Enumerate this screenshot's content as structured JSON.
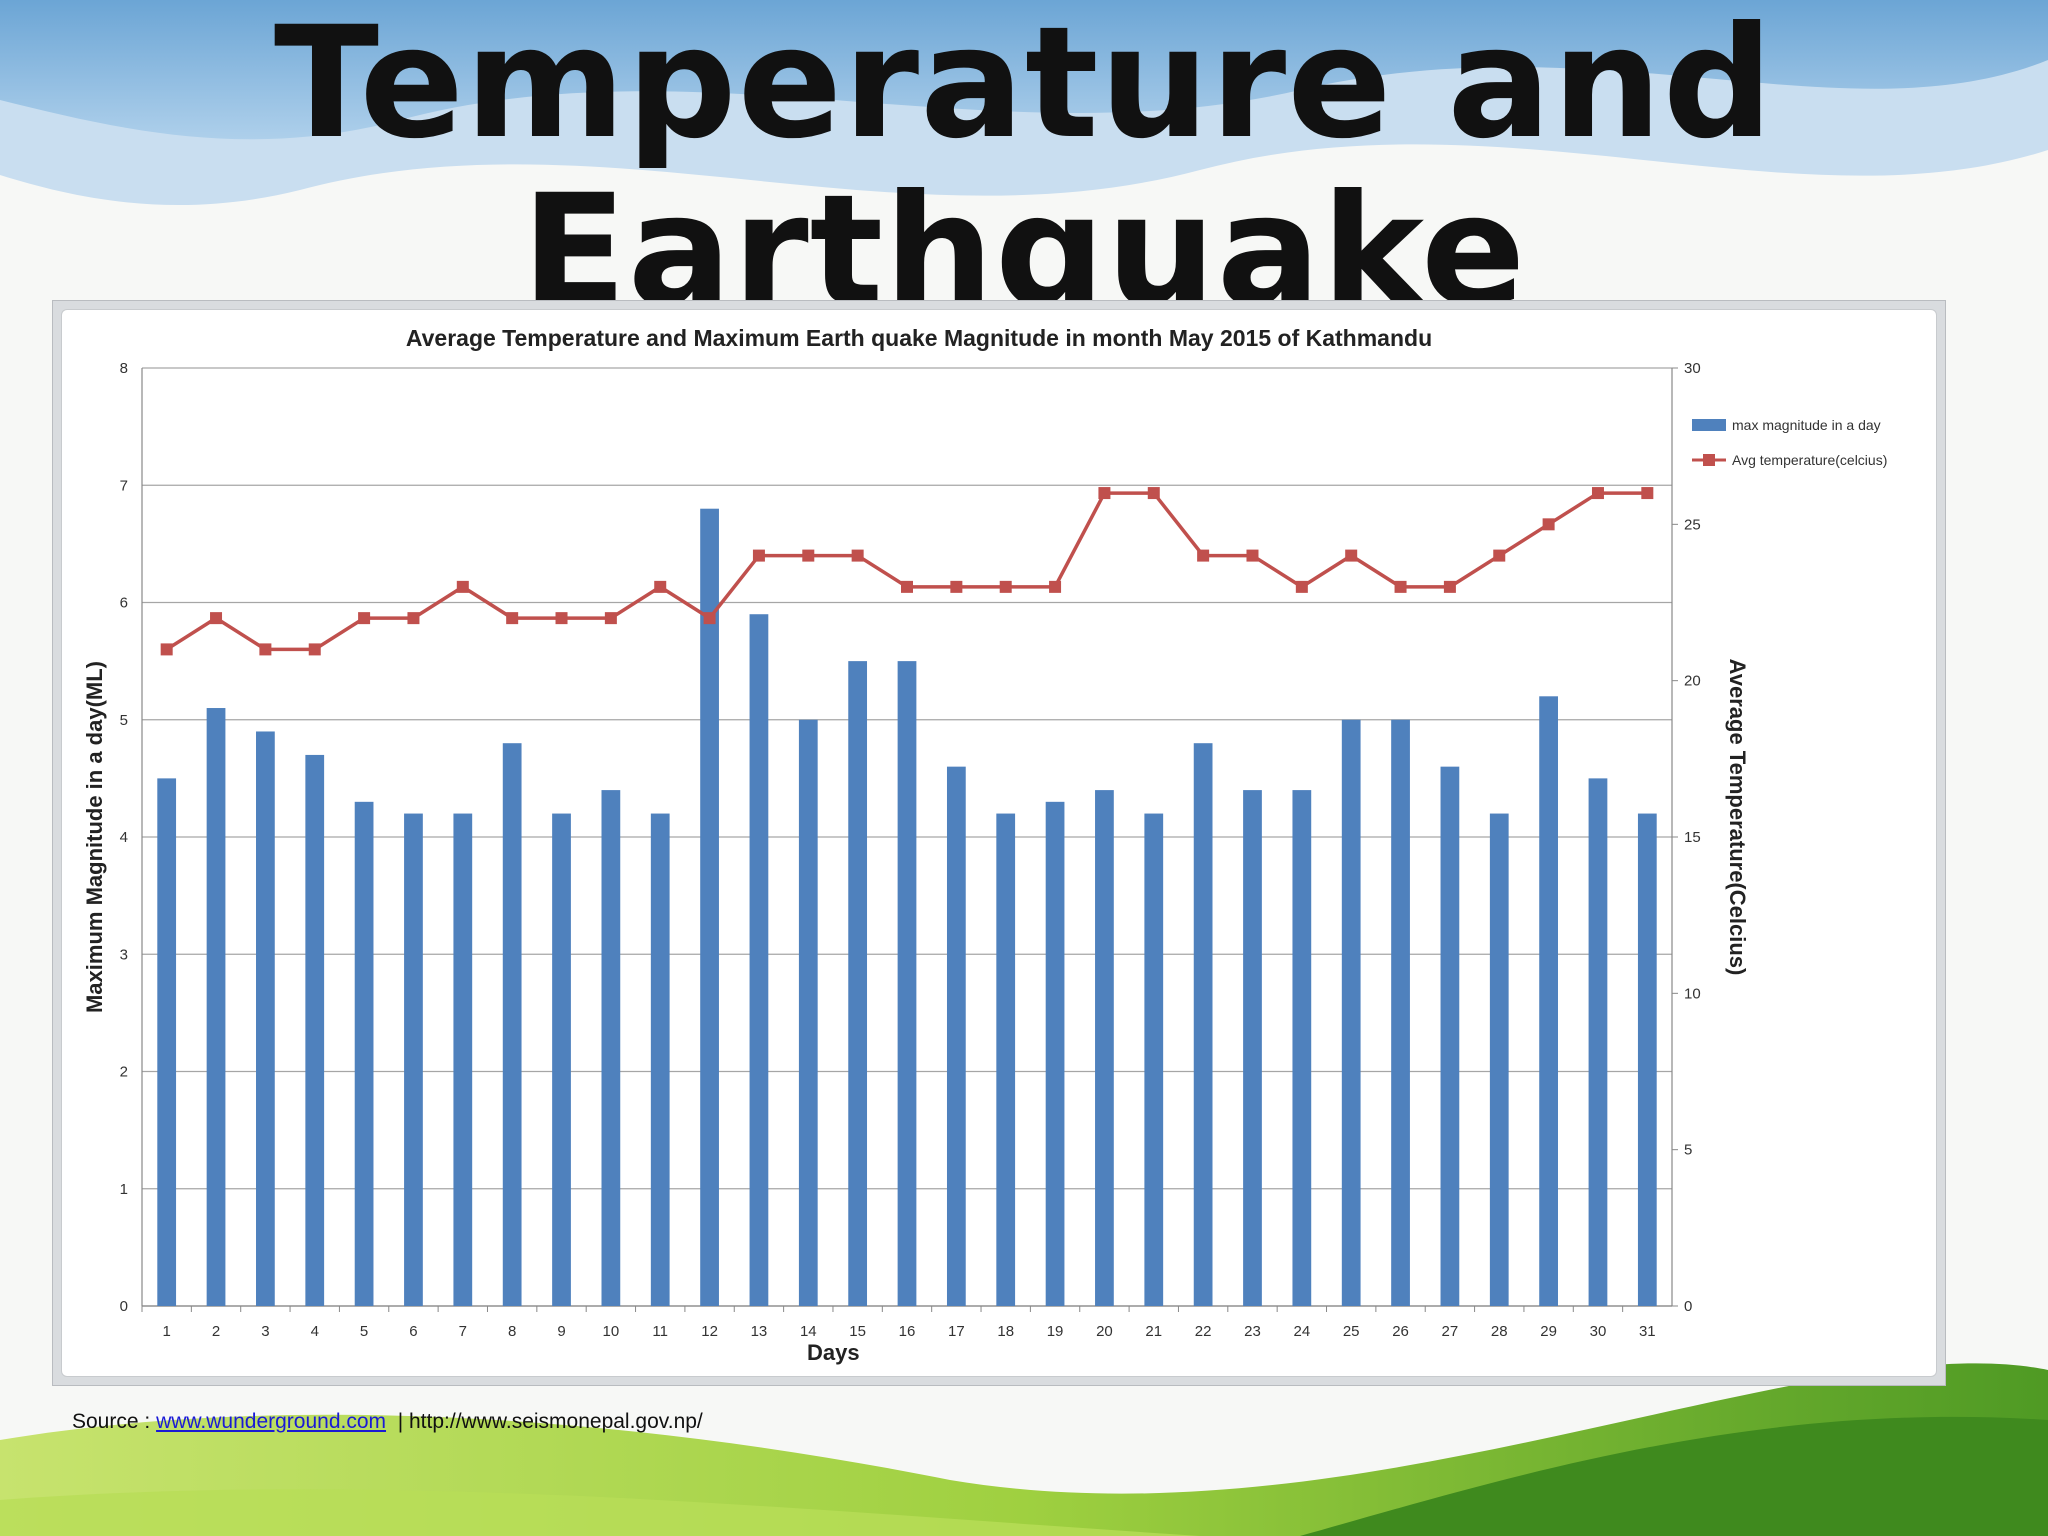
{
  "slide": {
    "title_line1": "Temperature and",
    "title_line2": "Earthquake"
  },
  "source": {
    "prefix": "Source :",
    "link1": "www.wunderground.com",
    "separator": "|",
    "link2": "http://www.seismonepal.gov.np/"
  },
  "colors": {
    "bar": "#4f81bd",
    "line": "#c0504d",
    "grid": "#a6a6a6",
    "link": "#1a1ad6"
  },
  "chart_data": {
    "type": "bar",
    "title": "Average Temperature and Maximum Earth quake Magnitude in month May 2015 of Kathmandu",
    "xlabel": "Days",
    "ylabel": "Maximum Magnitude in a day(ML)",
    "y2label": "Average Temperature(Celcius)",
    "ylim": [
      0,
      8
    ],
    "y2lim": [
      0,
      30
    ],
    "yticks": [
      "0",
      "1",
      "2",
      "3",
      "4",
      "5",
      "6",
      "7",
      "8"
    ],
    "y2ticks": [
      "0",
      "5",
      "10",
      "15",
      "20",
      "25",
      "30"
    ],
    "grid": true,
    "legend_position": "right",
    "categories": [
      "1",
      "2",
      "3",
      "4",
      "5",
      "6",
      "7",
      "8",
      "9",
      "10",
      "11",
      "12",
      "13",
      "14",
      "15",
      "16",
      "17",
      "18",
      "19",
      "20",
      "21",
      "22",
      "23",
      "24",
      "25",
      "26",
      "27",
      "28",
      "29",
      "30",
      "31"
    ],
    "series": [
      {
        "name": "max magnitude in a day",
        "type": "bar",
        "axis": "left",
        "values": [
          4.5,
          5.1,
          4.9,
          4.7,
          4.3,
          4.2,
          4.2,
          4.8,
          4.2,
          4.4,
          4.2,
          6.8,
          5.9,
          5.0,
          5.5,
          5.5,
          4.6,
          4.2,
          4.3,
          4.4,
          4.2,
          4.8,
          4.4,
          4.4,
          5.0,
          5.0,
          4.6,
          4.2,
          5.2,
          4.5,
          4.2
        ]
      },
      {
        "name": "Avg temperature(celcius)",
        "type": "line",
        "axis": "right",
        "values": [
          21,
          22,
          21,
          21,
          22,
          22,
          23,
          22,
          22,
          22,
          23,
          22,
          24,
          24,
          24,
          23,
          23,
          23,
          23,
          26,
          26,
          24,
          24,
          23,
          24,
          23,
          23,
          24,
          25,
          26,
          26
        ]
      }
    ]
  }
}
